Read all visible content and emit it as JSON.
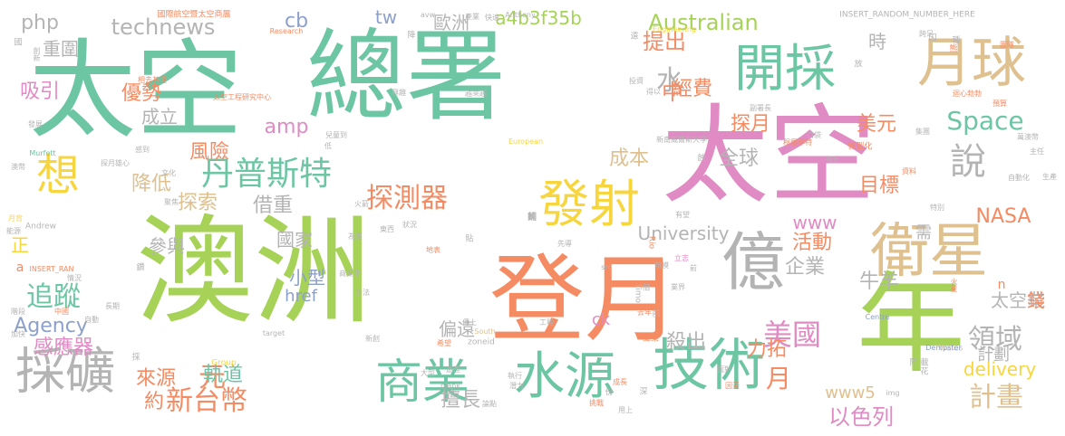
{
  "palette": {
    "green": "#6cc5a3",
    "orange": "#f58b63",
    "pink": "#e08bc3",
    "lime": "#a6d357",
    "yellow": "#f7d53f",
    "tan": "#dfc08f",
    "gray": "#b4b4b4",
    "blue": "#8da0cb"
  },
  "words": [
    {
      "text": "太空",
      "color": "green"
    },
    {
      "text": "總署",
      "color": "green"
    },
    {
      "text": "澳洲",
      "color": "lime"
    },
    {
      "text": "太空",
      "color": "pink"
    },
    {
      "text": "年",
      "color": "lime"
    },
    {
      "text": "登月",
      "color": "orange"
    },
    {
      "text": "開採",
      "color": "green"
    },
    {
      "text": "月球",
      "color": "tan"
    },
    {
      "text": "發射",
      "color": "yellow"
    },
    {
      "text": "億",
      "color": "gray"
    },
    {
      "text": "衛星",
      "color": "tan"
    },
    {
      "text": "技術",
      "color": "green"
    },
    {
      "text": "水源",
      "color": "green"
    },
    {
      "text": "商業",
      "color": "green"
    },
    {
      "text": "採礦",
      "color": "gray"
    },
    {
      "text": "想",
      "color": "yellow"
    },
    {
      "text": "丹普斯特",
      "color": "green"
    },
    {
      "text": "探測器",
      "color": "orange"
    },
    {
      "text": "說",
      "color": "gray"
    },
    {
      "text": "追蹤",
      "color": "green"
    },
    {
      "text": "Space",
      "color": "green"
    },
    {
      "text": "Australian",
      "color": "lime"
    },
    {
      "text": "美國",
      "color": "pink"
    },
    {
      "text": "領域",
      "color": "gray"
    },
    {
      "text": "計畫",
      "color": "tan"
    },
    {
      "text": "新台幣",
      "color": "orange"
    },
    {
      "text": "University",
      "color": "gray"
    },
    {
      "text": "technews",
      "color": "gray"
    },
    {
      "text": "php",
      "color": "gray"
    },
    {
      "text": "a4b3f35b",
      "color": "lime"
    },
    {
      "text": "Agency",
      "color": "blue"
    },
    {
      "text": "delivery",
      "color": "yellow"
    },
    {
      "text": "NASA",
      "color": "orange"
    },
    {
      "text": "www5",
      "color": "tan"
    },
    {
      "text": "www",
      "color": "pink"
    },
    {
      "text": "amp",
      "color": "pink"
    },
    {
      "text": "href",
      "color": "blue"
    },
    {
      "text": "ck",
      "color": "pink"
    },
    {
      "text": "cb",
      "color": "blue"
    },
    {
      "text": "tw",
      "color": "blue"
    },
    {
      "text": "歐洲",
      "color": "gray"
    },
    {
      "text": "水",
      "color": "gray"
    },
    {
      "text": "提出",
      "color": "orange"
    },
    {
      "text": "中",
      "color": "orange"
    },
    {
      "text": "經費",
      "color": "orange"
    },
    {
      "text": "成立",
      "color": "gray"
    },
    {
      "text": "風險",
      "color": "orange"
    },
    {
      "text": "降低",
      "color": "tan"
    },
    {
      "text": "探索",
      "color": "tan"
    },
    {
      "text": "借重",
      "color": "gray"
    },
    {
      "text": "國家",
      "color": "gray"
    },
    {
      "text": "參與",
      "color": "gray"
    },
    {
      "text": "小型",
      "color": "blue"
    },
    {
      "text": "成本",
      "color": "tan"
    },
    {
      "text": "全球",
      "color": "gray"
    },
    {
      "text": "活動",
      "color": "orange"
    },
    {
      "text": "目標",
      "color": "orange"
    },
    {
      "text": "探月",
      "color": "orange"
    },
    {
      "text": "美元",
      "color": "orange"
    },
    {
      "text": "企業",
      "color": "gray"
    },
    {
      "text": "牛羊",
      "color": "gray"
    },
    {
      "text": "殺出",
      "color": "gray"
    },
    {
      "text": "力拓",
      "color": "orange"
    },
    {
      "text": "月",
      "color": "orange"
    },
    {
      "text": "元",
      "color": "orange"
    },
    {
      "text": "軌道",
      "color": "green"
    },
    {
      "text": "擅長",
      "color": "gray"
    },
    {
      "text": "以色列",
      "color": "pink"
    },
    {
      "text": "計劃",
      "color": "gray"
    },
    {
      "text": "太空業",
      "color": "gray"
    },
    {
      "text": "錢",
      "color": "orange"
    },
    {
      "text": "需",
      "color": "gray"
    },
    {
      "text": "感應器",
      "color": "pink"
    },
    {
      "text": "來源",
      "color": "orange"
    },
    {
      "text": "約",
      "color": "orange"
    },
    {
      "text": "偏遠",
      "color": "gray"
    },
    {
      "text": "時",
      "color": "gray"
    },
    {
      "text": "吸引",
      "color": "pink"
    },
    {
      "text": "優勢",
      "color": "orange"
    },
    {
      "text": "重圍",
      "color": "gray"
    },
    {
      "text": "正",
      "color": "yellow"
    },
    {
      "text": "a",
      "color": "orange"
    },
    {
      "text": "n",
      "color": "orange"
    },
    {
      "text": "國際航空暨太空商展",
      "color": "orange"
    },
    {
      "text": "INSERT_RANDOM_NUMBER_HERE",
      "color": "gray"
    },
    {
      "text": "Anthony",
      "color": "gray"
    },
    {
      "text": "Research",
      "color": "orange"
    },
    {
      "text": "Engineering",
      "color": "yellow"
    },
    {
      "text": "太空工程研究中心",
      "color": "orange"
    },
    {
      "text": "相去甚遠",
      "color": "orange"
    },
    {
      "text": "創新",
      "color": "gray"
    },
    {
      "text": "發展",
      "color": "gray"
    },
    {
      "text": "Murfett",
      "color": "green"
    },
    {
      "text": "Andrew",
      "color": "gray"
    },
    {
      "text": "INSERT_RAN",
      "color": "orange"
    },
    {
      "text": "新南威爾斯大學",
      "color": "gray"
    },
    {
      "text": "European",
      "color": "yellow"
    },
    {
      "text": "Timo",
      "color": "gray"
    },
    {
      "text": "Rio",
      "color": "orange"
    },
    {
      "text": "Group",
      "color": "yellow"
    },
    {
      "text": "Centre",
      "color": "blue"
    },
    {
      "text": "Wales",
      "color": "tan"
    },
    {
      "text": "Dempster",
      "color": "blue"
    },
    {
      "text": "zoneid",
      "color": "gray"
    },
    {
      "text": "target",
      "color": "gray"
    },
    {
      "text": "South",
      "color": "tan"
    },
    {
      "text": "img",
      "color": "gray"
    },
    {
      "text": "src",
      "color": "gray"
    },
    {
      "text": "_blank",
      "color": "gray"
    },
    {
      "text": "avw",
      "color": "gray"
    },
    {
      "text": "產業",
      "color": "gray"
    },
    {
      "text": "快速",
      "color": "gray"
    },
    {
      "text": "跨足",
      "color": "gray"
    },
    {
      "text": "越來越",
      "color": "gray"
    },
    {
      "text": "副署長",
      "color": "gray"
    },
    {
      "text": "穆羅非特",
      "color": "orange"
    },
    {
      "text": "微型化",
      "color": "orange"
    },
    {
      "text": "報告",
      "color": "gray"
    },
    {
      "text": "資料",
      "color": "orange"
    },
    {
      "text": "特別",
      "color": "gray"
    },
    {
      "text": "自動化",
      "color": "gray"
    },
    {
      "text": "生產",
      "color": "gray"
    },
    {
      "text": "火星",
      "color": "orange"
    },
    {
      "text": "預算",
      "color": "orange"
    },
    {
      "text": "主任",
      "color": "gray"
    },
    {
      "text": "萬澳幣",
      "color": "gray"
    },
    {
      "text": "團隊",
      "color": "orange"
    },
    {
      "text": "迴心勃勃",
      "color": "orange"
    },
    {
      "text": "集團",
      "color": "gray"
    },
    {
      "text": "口袋",
      "color": "gray"
    },
    {
      "text": "立志",
      "color": "pink"
    },
    {
      "text": "業界",
      "color": "gray"
    },
    {
      "text": "前",
      "color": "gray"
    },
    {
      "text": "地表",
      "color": "orange"
    },
    {
      "text": "東西",
      "color": "gray"
    },
    {
      "text": "為業",
      "color": "gray"
    },
    {
      "text": "商業化",
      "color": "gray"
    },
    {
      "text": "手法",
      "color": "gray"
    },
    {
      "text": "月背",
      "color": "yellow"
    },
    {
      "text": "能源",
      "color": "gray"
    },
    {
      "text": "情況",
      "color": "gray"
    },
    {
      "text": "中國",
      "color": "orange"
    },
    {
      "text": "長期",
      "color": "gray"
    },
    {
      "text": "階段",
      "color": "gray"
    },
    {
      "text": "自動",
      "color": "gray"
    },
    {
      "text": "傳上",
      "color": "gray"
    },
    {
      "text": "新創",
      "color": "gray"
    },
    {
      "text": "去年",
      "color": "orange"
    },
    {
      "text": "提案",
      "color": "orange"
    },
    {
      "text": "希望",
      "color": "orange"
    },
    {
      "text": "工程",
      "color": "gray"
    },
    {
      "text": "大型",
      "color": "gray"
    },
    {
      "text": "途徑",
      "color": "gray"
    },
    {
      "text": "潛力",
      "color": "gray"
    },
    {
      "text": "執行",
      "color": "gray"
    },
    {
      "text": "用上",
      "color": "gray"
    },
    {
      "text": "成長",
      "color": "orange"
    },
    {
      "text": "挑戰",
      "color": "orange"
    },
    {
      "text": "論點",
      "color": "gray"
    },
    {
      "text": "面對",
      "color": "gray"
    },
    {
      "text": "因素",
      "color": "orange"
    },
    {
      "text": "澳幣",
      "color": "gray"
    },
    {
      "text": "加快",
      "color": "gray"
    },
    {
      "text": "感到",
      "color": "gray"
    },
    {
      "text": "探月雄心",
      "color": "gray"
    },
    {
      "text": "文化",
      "color": "gray"
    },
    {
      "text": "聚焦",
      "color": "gray"
    },
    {
      "text": "火箭",
      "color": "gray"
    },
    {
      "text": "狀況",
      "color": "gray"
    },
    {
      "text": "先導",
      "color": "gray"
    },
    {
      "text": "規模",
      "color": "gray"
    },
    {
      "text": "投資",
      "color": "gray"
    },
    {
      "text": "得以",
      "color": "gray"
    },
    {
      "text": "興趣",
      "color": "gray"
    },
    {
      "text": "有望",
      "color": "gray"
    },
    {
      "text": "兒童到",
      "color": "gray"
    },
    {
      "text": "低",
      "color": "gray"
    },
    {
      "text": "國",
      "color": "gray"
    },
    {
      "text": "降",
      "color": "gray"
    },
    {
      "text": "放",
      "color": "gray"
    },
    {
      "text": "囚",
      "color": "gray"
    },
    {
      "text": "種",
      "color": "gray"
    },
    {
      "text": "熊",
      "color": "orange"
    },
    {
      "text": "遠",
      "color": "gray"
    },
    {
      "text": "載",
      "color": "gray"
    },
    {
      "text": "深",
      "color": "gray"
    },
    {
      "text": "份",
      "color": "gray"
    },
    {
      "text": "倍",
      "color": "gray"
    },
    {
      "text": "貼",
      "color": "gray"
    },
    {
      "text": "花",
      "color": "gray"
    },
    {
      "text": "陸",
      "color": "gray"
    },
    {
      "text": "鑽",
      "color": "gray"
    },
    {
      "text": "採",
      "color": "gray"
    },
    {
      "text": "前",
      "color": "gray"
    },
    {
      "text": "蝕",
      "color": "gray"
    },
    {
      "text": "捕",
      "color": "gray"
    },
    {
      "text": "飾",
      "color": "gray"
    },
    {
      "text": "翻",
      "color": "gray"
    }
  ]
}
